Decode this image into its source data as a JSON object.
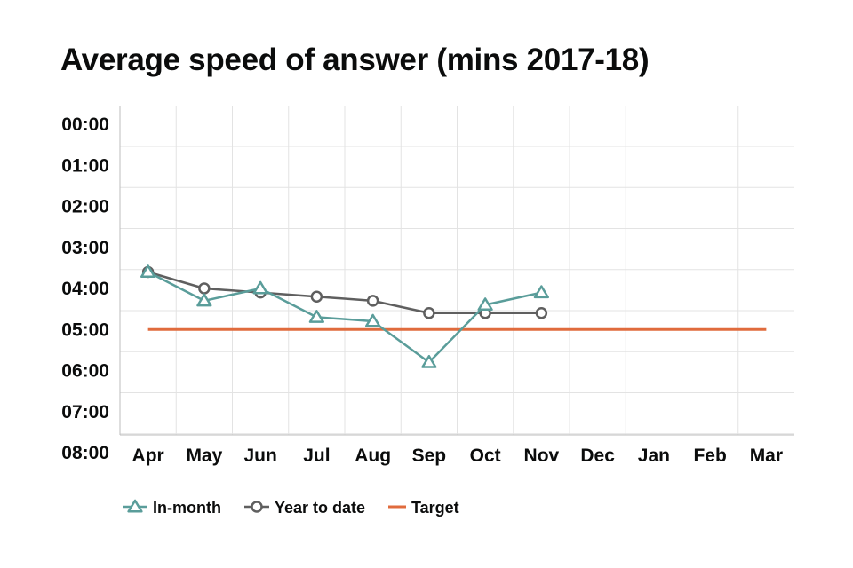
{
  "chart_data": {
    "type": "line",
    "title": "Average speed of answer (mins 2017-18)",
    "categories": [
      "Apr",
      "May",
      "Jun",
      "Jul",
      "Aug",
      "Sep",
      "Oct",
      "Nov",
      "Dec",
      "Jan",
      "Feb",
      "Mar"
    ],
    "y_axis": {
      "unit": "minutes",
      "inverted": true,
      "range": [
        0,
        8
      ],
      "tick_labels": [
        "00:00",
        "01:00",
        "02:00",
        "03:00",
        "04:00",
        "05:00",
        "06:00",
        "07:00",
        "08:00"
      ]
    },
    "grid": true,
    "legend_position": "bottom-left",
    "series": [
      {
        "name": "In-month",
        "color": "#5a9d9a",
        "marker": "triangle",
        "values": [
          3.6,
          4.3,
          4.0,
          4.7,
          4.8,
          5.8,
          4.4,
          4.1,
          null,
          null,
          null,
          null
        ]
      },
      {
        "name": "Year to date",
        "color": "#5f5f5f",
        "marker": "circle",
        "values": [
          3.6,
          4.0,
          4.1,
          4.2,
          4.3,
          4.6,
          4.6,
          4.6,
          null,
          null,
          null,
          null
        ]
      },
      {
        "name": "Target",
        "color": "#e06b3d",
        "marker": "none",
        "values": [
          5,
          5,
          5,
          5,
          5,
          5,
          5,
          5,
          5,
          5,
          5,
          5
        ]
      }
    ]
  }
}
